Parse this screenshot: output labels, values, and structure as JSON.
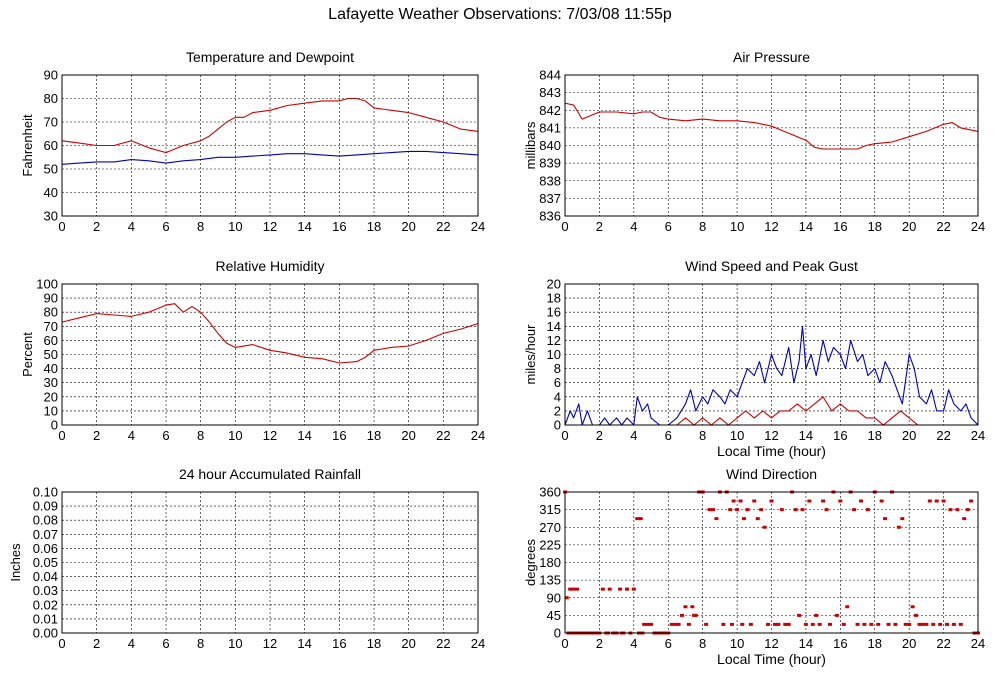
{
  "page": {
    "title": "Lafayette Weather Observations: 7/03/08 11:55p"
  },
  "colors": {
    "primary": "#cc0000",
    "secondary": "#0000bb",
    "grid": "#000000"
  },
  "chart_data": [
    {
      "id": "temp",
      "type": "line",
      "title": "Temperature and Dewpoint",
      "xlabel": "",
      "ylabel": "Fahrenheit",
      "xlim": [
        0,
        24
      ],
      "ylim": [
        30,
        90
      ],
      "xticks": [
        0,
        2,
        4,
        6,
        8,
        10,
        12,
        14,
        16,
        18,
        20,
        22,
        24
      ],
      "yticks": [
        30,
        40,
        50,
        60,
        70,
        80,
        90
      ],
      "grid": true,
      "series": [
        {
          "color": "#cc0000",
          "style": "line",
          "x": [
            0,
            1,
            2,
            3,
            4,
            5,
            6,
            7,
            7.5,
            8,
            8.5,
            9,
            9.5,
            10,
            10.5,
            11,
            12,
            13,
            14,
            15,
            16,
            16.5,
            17,
            17.5,
            18,
            19,
            20,
            21,
            22,
            23,
            24
          ],
          "y": [
            62,
            61,
            60,
            60,
            62,
            59,
            57,
            60,
            61,
            62,
            64,
            67,
            70,
            72,
            72,
            74,
            75,
            77,
            78,
            79,
            79,
            80,
            80,
            79,
            76,
            75,
            74,
            72,
            70,
            67,
            66
          ]
        },
        {
          "color": "#0000bb",
          "style": "line",
          "x": [
            0,
            1,
            2,
            3,
            4,
            5,
            6,
            7,
            8,
            9,
            10,
            11,
            12,
            13,
            14,
            15,
            16,
            17,
            18,
            19,
            20,
            21,
            22,
            23,
            24
          ],
          "y": [
            52,
            52.5,
            53,
            53,
            54,
            53.5,
            52.5,
            53.5,
            54,
            55,
            55,
            55.5,
            56,
            56.5,
            56.5,
            56,
            55.5,
            56,
            56.5,
            57,
            57.5,
            57.5,
            57,
            56.5,
            56
          ]
        }
      ]
    },
    {
      "id": "pressure",
      "type": "line",
      "title": "Air Pressure",
      "xlabel": "",
      "ylabel": "millibars",
      "xlim": [
        0,
        24
      ],
      "ylim": [
        836,
        844
      ],
      "xticks": [
        0,
        2,
        4,
        6,
        8,
        10,
        12,
        14,
        16,
        18,
        20,
        22,
        24
      ],
      "yticks": [
        836,
        837,
        838,
        839,
        840,
        841,
        842,
        843,
        844
      ],
      "grid": true,
      "series": [
        {
          "color": "#cc0000",
          "style": "line",
          "x": [
            0,
            0.5,
            1,
            1.5,
            2,
            3,
            4,
            4.5,
            5,
            5.5,
            6,
            7,
            8,
            9,
            10,
            11,
            12,
            13,
            14,
            14.5,
            15,
            16,
            17,
            17.5,
            18,
            19,
            20,
            21,
            22,
            22.5,
            23,
            24
          ],
          "y": [
            842.4,
            842.3,
            841.5,
            841.7,
            841.9,
            841.9,
            841.8,
            841.9,
            841.9,
            841.6,
            841.5,
            841.4,
            841.5,
            841.4,
            841.4,
            841.3,
            841.1,
            840.7,
            840.3,
            839.9,
            839.8,
            839.8,
            839.8,
            840.0,
            840.1,
            840.2,
            840.5,
            840.8,
            841.2,
            841.3,
            841.0,
            840.8
          ]
        }
      ]
    },
    {
      "id": "humidity",
      "type": "line",
      "title": "Relative Humidity",
      "xlabel": "",
      "ylabel": "Percent",
      "xlim": [
        0,
        24
      ],
      "ylim": [
        0,
        100
      ],
      "xticks": [
        0,
        2,
        4,
        6,
        8,
        10,
        12,
        14,
        16,
        18,
        20,
        22,
        24
      ],
      "yticks": [
        0,
        10,
        20,
        30,
        40,
        50,
        60,
        70,
        80,
        90,
        100
      ],
      "grid": true,
      "series": [
        {
          "color": "#cc0000",
          "style": "line",
          "x": [
            0,
            1,
            2,
            3,
            4,
            5,
            6,
            6.5,
            7,
            7.5,
            8,
            8.5,
            9,
            9.5,
            10,
            11,
            12,
            13,
            14,
            15,
            16,
            17,
            17.5,
            18,
            19,
            20,
            21,
            22,
            23,
            24
          ],
          "y": [
            73,
            76,
            79,
            78,
            77,
            80,
            85,
            86,
            80,
            84,
            80,
            73,
            65,
            58,
            55,
            57,
            53,
            51,
            48,
            47,
            44,
            45,
            48,
            53,
            55,
            56,
            60,
            65,
            68,
            72
          ]
        }
      ]
    },
    {
      "id": "wind",
      "type": "line",
      "title": "Wind Speed and Peak Gust",
      "xlabel": "Local Time (hour)",
      "ylabel": "miles/hour",
      "xlim": [
        0,
        24
      ],
      "ylim": [
        0,
        20
      ],
      "xticks": [
        0,
        2,
        4,
        6,
        8,
        10,
        12,
        14,
        16,
        18,
        20,
        22,
        24
      ],
      "yticks": [
        0,
        2,
        4,
        6,
        8,
        10,
        12,
        14,
        16,
        18,
        20
      ],
      "grid": true,
      "series": [
        {
          "color": "#0000bb",
          "style": "line",
          "x": [
            0,
            0.3,
            0.5,
            0.8,
            1,
            1.3,
            1.6,
            2,
            2.3,
            2.6,
            3,
            3.3,
            3.6,
            4,
            4.2,
            4.5,
            4.8,
            5,
            5.5,
            6,
            6.5,
            7,
            7.3,
            7.6,
            8,
            8.3,
            8.6,
            9,
            9.3,
            9.6,
            10,
            10.3,
            10.6,
            11,
            11.3,
            11.6,
            12,
            12.3,
            12.6,
            13,
            13.3,
            13.6,
            13.8,
            14,
            14.3,
            14.6,
            15,
            15.3,
            15.6,
            16,
            16.3,
            16.6,
            17,
            17.3,
            17.6,
            18,
            18.3,
            18.6,
            19,
            19.3,
            19.6,
            20,
            20.3,
            20.6,
            21,
            21.3,
            21.6,
            22,
            22.3,
            22.6,
            23,
            23.3,
            23.6,
            24
          ],
          "y": [
            0,
            2,
            1,
            3,
            0,
            2,
            0,
            0,
            1,
            0,
            1,
            0,
            1,
            0,
            4,
            2,
            3,
            1,
            0,
            0,
            1,
            3,
            5,
            2,
            4,
            3,
            5,
            4,
            3,
            5,
            4,
            6,
            8,
            7,
            9,
            6,
            10,
            8,
            7,
            11,
            6,
            9,
            14,
            8,
            10,
            7,
            12,
            9,
            11,
            10,
            8,
            12,
            9,
            10,
            7,
            8,
            6,
            9,
            7,
            5,
            3,
            10,
            8,
            4,
            3,
            5,
            2,
            2,
            5,
            3,
            2,
            3,
            1,
            0
          ]
        },
        {
          "color": "#cc0000",
          "style": "line",
          "x": [
            0,
            6.5,
            7,
            7.5,
            8,
            8.5,
            9,
            9.5,
            10,
            10.5,
            11,
            11.5,
            12,
            12.5,
            13,
            13.5,
            14,
            14.5,
            15,
            15.5,
            16,
            16.5,
            17,
            17.5,
            18,
            18.5,
            19,
            19.5,
            20,
            20.5,
            21,
            24
          ],
          "y": [
            0,
            0,
            1,
            0,
            1,
            0,
            1,
            0,
            1,
            2,
            1,
            2,
            1,
            2,
            2,
            3,
            2,
            3,
            4,
            2,
            3,
            2,
            2,
            1,
            1,
            0,
            1,
            2,
            1,
            0,
            0,
            0
          ]
        }
      ]
    },
    {
      "id": "rain",
      "type": "line",
      "title": "24 hour Accumulated Rainfall",
      "xlabel": "",
      "ylabel": "Inches",
      "xlim": [
        0,
        24
      ],
      "ylim": [
        0,
        0.1
      ],
      "xticks": [
        0,
        2,
        4,
        6,
        8,
        10,
        12,
        14,
        16,
        18,
        20,
        22,
        24
      ],
      "yticks": [
        0.0,
        0.01,
        0.02,
        0.03,
        0.04,
        0.05,
        0.06,
        0.07,
        0.08,
        0.09,
        0.1
      ],
      "ydecimals": 2,
      "grid": true,
      "series": [
        {
          "color": "#cc0000",
          "style": "line",
          "x": [
            0,
            24
          ],
          "y": [
            0,
            0
          ]
        }
      ]
    },
    {
      "id": "direction",
      "type": "scatter",
      "title": "Wind Direction",
      "xlabel": "Local Time (hour)",
      "ylabel": "degrees",
      "xlim": [
        0,
        24
      ],
      "ylim": [
        0,
        360
      ],
      "xticks": [
        0,
        2,
        4,
        6,
        8,
        10,
        12,
        14,
        16,
        18,
        20,
        22,
        24
      ],
      "yticks": [
        0,
        45,
        90,
        135,
        180,
        225,
        270,
        315,
        360
      ],
      "grid": true,
      "series": [
        {
          "color": "#cc0000",
          "style": "dots",
          "x": [
            0,
            0.1,
            0.2,
            0.3,
            0.4,
            0.5,
            0.6,
            0.7,
            0.8,
            1.0,
            1.2,
            1.4,
            1.6,
            1.8,
            2.0,
            2.2,
            2.4,
            2.5,
            2.6,
            2.8,
            3.0,
            3.2,
            3.3,
            3.4,
            3.6,
            3.8,
            4.0,
            4.2,
            4.3,
            4.4,
            4.5,
            4.6,
            4.8,
            5.0,
            5.2,
            5.4,
            5.6,
            5.8,
            6.0,
            6.2,
            6.4,
            6.6,
            6.8,
            7.0,
            7.2,
            7.4,
            7.5,
            7.6,
            7.8,
            8.0,
            8.2,
            8.4,
            8.6,
            8.8,
            9.0,
            9.2,
            9.4,
            9.6,
            9.7,
            9.8,
            10.0,
            10.2,
            10.3,
            10.4,
            10.6,
            10.8,
            11.0,
            11.2,
            11.4,
            11.6,
            11.8,
            12.0,
            12.2,
            12.4,
            12.6,
            12.8,
            13.0,
            13.2,
            13.4,
            13.6,
            13.8,
            14.0,
            14.2,
            14.4,
            14.6,
            14.8,
            15.0,
            15.2,
            15.4,
            15.6,
            15.8,
            16.0,
            16.2,
            16.4,
            16.6,
            16.8,
            17.0,
            17.2,
            17.4,
            17.6,
            17.8,
            18.0,
            18.2,
            18.4,
            18.6,
            18.8,
            19.0,
            19.2,
            19.4,
            19.6,
            19.8,
            20.0,
            20.2,
            20.4,
            20.6,
            20.8,
            21.0,
            21.2,
            21.4,
            21.6,
            21.8,
            22.0,
            22.2,
            22.4,
            22.6,
            22.8,
            23.0,
            23.2,
            23.4,
            23.6,
            23.8,
            24.0
          ],
          "y": [
            360,
            90,
            0,
            112,
            0,
            112,
            0,
            112,
            0,
            0,
            0,
            0,
            0,
            0,
            0,
            112,
            0,
            0,
            112,
            0,
            0,
            112,
            0,
            0,
            112,
            0,
            112,
            292,
            0,
            292,
            0,
            22,
            22,
            22,
            0,
            0,
            0,
            0,
            0,
            22,
            22,
            22,
            45,
            67,
            22,
            67,
            45,
            45,
            360,
            360,
            22,
            315,
            315,
            292,
            360,
            22,
            360,
            315,
            22,
            337,
            315,
            337,
            22,
            292,
            315,
            22,
            337,
            292,
            315,
            270,
            22,
            337,
            22,
            22,
            315,
            22,
            22,
            360,
            315,
            45,
            315,
            22,
            337,
            22,
            45,
            22,
            337,
            315,
            22,
            360,
            45,
            337,
            22,
            67,
            360,
            315,
            22,
            337,
            22,
            315,
            22,
            360,
            22,
            337,
            292,
            22,
            360,
            22,
            270,
            292,
            22,
            22,
            67,
            45,
            22,
            22,
            22,
            337,
            22,
            337,
            22,
            337,
            22,
            315,
            22,
            315,
            22,
            292,
            315,
            337,
            0,
            0
          ]
        }
      ]
    }
  ]
}
